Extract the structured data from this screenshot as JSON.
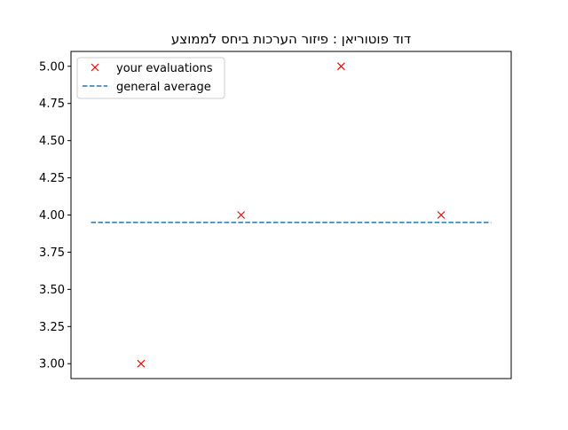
{
  "chart_data": {
    "type": "scatter",
    "title": "דוד פוטוריאן : פיזור הערכות ביחס לממוצע",
    "xlabel": "",
    "ylabel": "",
    "xlim": [
      -0.2,
      4.2
    ],
    "ylim": [
      2.9,
      5.1
    ],
    "x_ticks_visible": false,
    "y_ticks": [
      3.0,
      3.25,
      3.5,
      3.75,
      4.0,
      4.25,
      4.5,
      4.75,
      5.0
    ],
    "y_tick_labels": [
      "3.00",
      "3.25",
      "3.50",
      "3.75",
      "4.00",
      "4.25",
      "4.50",
      "4.75",
      "5.00"
    ],
    "grid": false,
    "legend_position": "upper-left",
    "series": [
      {
        "name": "your evaluations",
        "kind": "marker",
        "marker": "x",
        "color": "#ff0000",
        "x": [
          0.5,
          1.5,
          2.5,
          3.5
        ],
        "y": [
          3,
          4,
          5,
          4
        ]
      },
      {
        "name": "general average",
        "kind": "hline",
        "linestyle": "dashed",
        "color": "#1f77b4",
        "x": [
          0,
          4
        ],
        "y": 3.95
      }
    ]
  }
}
